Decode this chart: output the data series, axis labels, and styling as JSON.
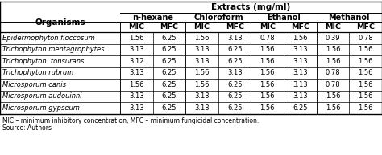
{
  "title": "Extracts (mg/ml)",
  "col_groups": [
    "n-hexane",
    "Chloroform",
    "Ethanol",
    "Methanol"
  ],
  "sub_headers": [
    "MIC",
    "MFC",
    "MIC",
    "MFC",
    "MIC",
    "MFC",
    "MIC",
    "MFC"
  ],
  "organisms": [
    "Epidermophyton floccosum",
    "Trichophyton mentagrophytes",
    "Trichophyton  tonsurans",
    "Trichophyton rubrum",
    "Microsporum canis",
    "Microsporum audouinni",
    "Microsporum gypseum"
  ],
  "data": [
    [
      "1.56",
      "6.25",
      "1.56",
      "3.13",
      "0.78",
      "1.56",
      "0.39",
      "0.78"
    ],
    [
      "3.13",
      "6.25",
      "3.13",
      "6.25",
      "1.56",
      "3.13",
      "1.56",
      "1.56"
    ],
    [
      "3.12",
      "6.25",
      "3.13",
      "6.25",
      "1.56",
      "3.13",
      "1.56",
      "1.56"
    ],
    [
      "3.13",
      "6.25",
      "1.56",
      "3.13",
      "1.56",
      "3.13",
      "0.78",
      "1.56"
    ],
    [
      "1.56",
      "6.25",
      "1.56",
      "6.25",
      "1.56",
      "3.13",
      "0.78",
      "1.56"
    ],
    [
      "3.13",
      "6.25",
      "3.13",
      "6.25",
      "1.56",
      "3.13",
      "1.56",
      "1.56"
    ],
    [
      "3.13",
      "6.25",
      "3.13",
      "6.25",
      "1.56",
      "6.25",
      "1.56",
      "1.56"
    ]
  ],
  "footnote1": "MIC – minimum inhibitory concentration, MFC – minimum fungicidal concentration.",
  "footnote2": "Source: Authors",
  "bg_color": "#ffffff"
}
